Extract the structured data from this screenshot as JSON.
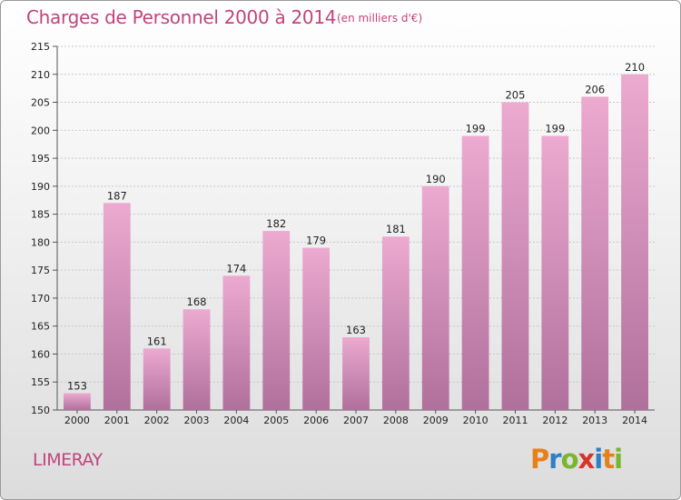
{
  "title": "Charges de Personnel 2000 à 2014",
  "subtitle": "(en milliers d'€)",
  "commune": "LIMERAY",
  "logo": {
    "text": "Proxiti",
    "letters": [
      {
        "ch": "P",
        "color": "#e8801a"
      },
      {
        "ch": "r",
        "color": "#2f7fc8"
      },
      {
        "ch": "o",
        "color": "#7ab62c"
      },
      {
        "ch": "x",
        "color": "#d9332a"
      },
      {
        "ch": "i",
        "color": "#2f7fc8"
      },
      {
        "ch": "t",
        "color": "#e8801a"
      },
      {
        "ch": "i",
        "color": "#7ab62c"
      }
    ]
  },
  "colors": {
    "bar_top": "#ecaad0",
    "bar_bottom": "#b0709c",
    "accent": "#c0447f"
  },
  "chart_data": {
    "type": "bar",
    "categories": [
      "2000",
      "2001",
      "2002",
      "2003",
      "2004",
      "2005",
      "2006",
      "2007",
      "2008",
      "2009",
      "2010",
      "2011",
      "2012",
      "2013",
      "2014"
    ],
    "values": [
      153,
      187,
      161,
      168,
      174,
      182,
      179,
      163,
      181,
      190,
      199,
      205,
      199,
      206,
      210
    ],
    "title": "Charges de Personnel 2000 à 2014",
    "ylim": [
      150,
      215
    ],
    "yticks": [
      150,
      155,
      160,
      165,
      170,
      175,
      180,
      185,
      190,
      195,
      200,
      205,
      210,
      215
    ],
    "grid": true
  }
}
